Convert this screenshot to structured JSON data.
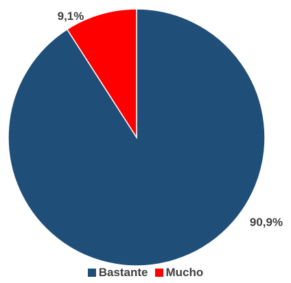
{
  "chart_data": {
    "type": "pie",
    "categories": [
      "Bastante",
      "Mucho"
    ],
    "values": [
      90.9,
      9.1
    ],
    "data_labels": [
      "90,9%",
      "9,1%"
    ],
    "colors": [
      "#1f4e79",
      "#ff0000"
    ],
    "title": "",
    "legend_position": "bottom",
    "start_angle": "12 o'clock",
    "direction": "clockwise"
  }
}
